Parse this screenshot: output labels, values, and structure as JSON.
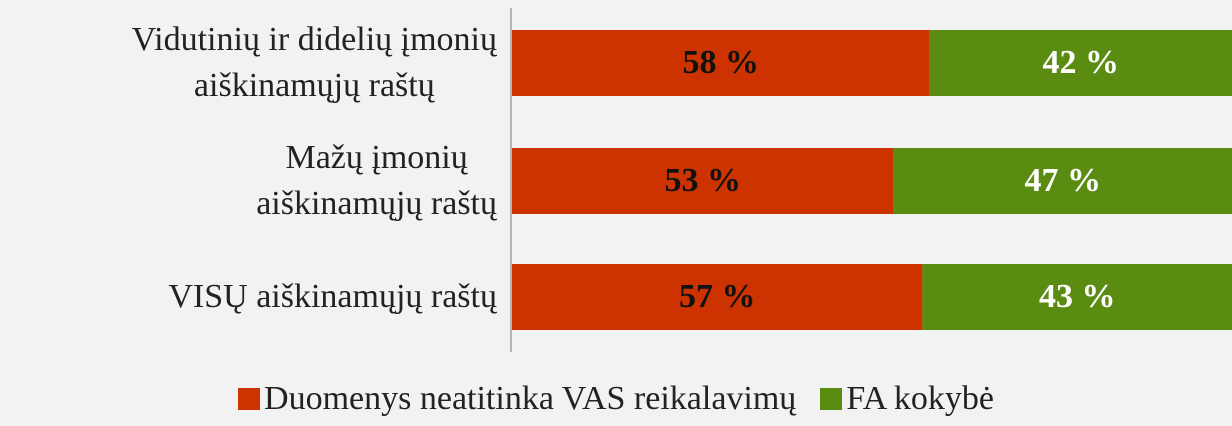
{
  "chart_data": {
    "type": "stacked-barh",
    "categories": [
      "Vidutinių ir didelių įmonių\naiškinamųjų raštų",
      "Mažų įmonių\naiškinamųjų raštų",
      "VISŲ aiškinamųjų raštų"
    ],
    "xlim": [
      0,
      100
    ],
    "series": [
      {
        "name": "Duomenys neatitinka VAS reikalavimų",
        "color": "#cc3300",
        "values": [
          58,
          53,
          57
        ],
        "value_labels": [
          "58 %",
          "53 %",
          "57 %"
        ]
      },
      {
        "name": "FA kokybė",
        "color": "#5b8c12",
        "values": [
          42,
          47,
          43
        ],
        "value_labels": [
          "42 %",
          "47 %",
          "43 %"
        ]
      }
    ]
  }
}
